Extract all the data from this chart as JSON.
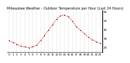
{
  "title": "Milwaukee Weather - Outdoor Temperature per Hour (Last 24 Hours)",
  "hours": [
    0,
    1,
    2,
    3,
    4,
    5,
    6,
    7,
    8,
    9,
    10,
    11,
    12,
    13,
    14,
    15,
    16,
    17,
    18,
    19,
    20,
    21,
    22,
    23
  ],
  "temps": [
    28,
    26,
    24,
    22,
    21,
    20,
    21,
    23,
    28,
    34,
    40,
    46,
    52,
    56,
    57,
    55,
    50,
    44,
    40,
    36,
    32,
    29,
    27,
    25
  ],
  "line_color": "#ff0000",
  "marker_color": "#000000",
  "bg_color": "#ffffff",
  "ylim": [
    15,
    62
  ],
  "ytick_values": [
    20,
    30,
    40,
    50,
    60
  ],
  "ytick_labels": [
    "20",
    "30",
    "40",
    "50",
    "60"
  ],
  "grid_color": "#aaaaaa",
  "title_fontsize": 3.5,
  "tick_fontsize": 3.0,
  "linewidth": 0.5,
  "markersize": 1.5
}
